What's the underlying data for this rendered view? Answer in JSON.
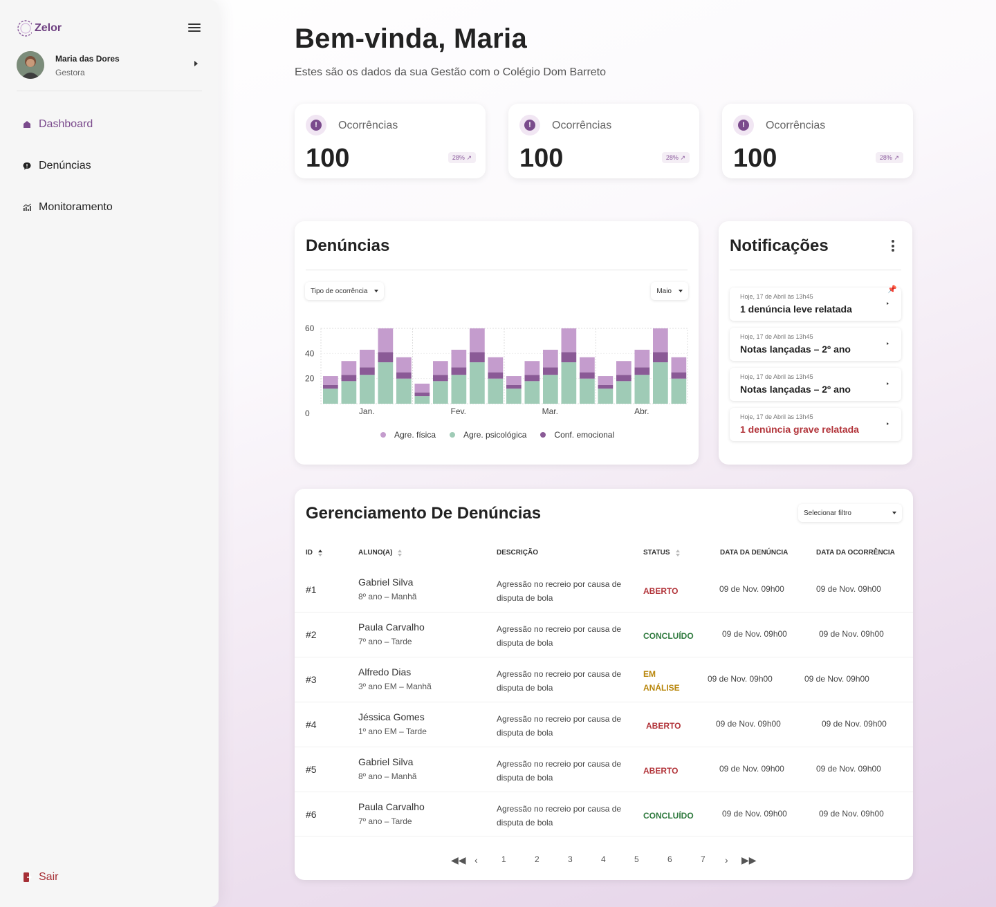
{
  "sidebar": {
    "brand": "Zelor",
    "user": {
      "name": "Maria das Dores",
      "role": "Gestora"
    },
    "nav": [
      {
        "label": "Dashboard",
        "active": true
      },
      {
        "label": "Denúncias",
        "active": false
      },
      {
        "label": "Monitoramento",
        "active": false
      }
    ],
    "logout": "Sair"
  },
  "header": {
    "title": "Bem-vinda, Maria",
    "subtitle": "Estes são os dados da sua Gestão com o Colégio Dom Barreto"
  },
  "stats": [
    {
      "label": "Ocorrências",
      "value": "100",
      "trend": "28%"
    },
    {
      "label": "Ocorrências",
      "value": "100",
      "trend": "28%"
    },
    {
      "label": "Ocorrências",
      "value": "100",
      "trend": "28%"
    }
  ],
  "chart_card": {
    "title": "Denúncias",
    "filter_type": "Tipo de ocorrência",
    "filter_month": "Maio"
  },
  "chart_data": {
    "type": "bar",
    "stacked": true,
    "groups": [
      "Jan.",
      "Fev.",
      "Mar.",
      "Abr."
    ],
    "bars_per_group": 5,
    "y_ticks": [
      0,
      20,
      40,
      60
    ],
    "ylim": [
      0,
      60
    ],
    "colors": {
      "psicologica": "#9fcbb6",
      "emocional": "#8a5a96",
      "fisica": "#c49ccd"
    },
    "series": [
      {
        "name": "Agre. psicológica",
        "values": [
          12,
          18,
          23,
          33,
          20,
          6,
          18,
          23,
          33,
          20,
          12,
          18,
          23,
          33,
          20,
          12,
          18,
          23,
          33,
          20
        ]
      },
      {
        "name": "Conf. emocional",
        "values": [
          3,
          5,
          6,
          8,
          5,
          3,
          5,
          6,
          8,
          5,
          3,
          5,
          6,
          8,
          5,
          3,
          5,
          6,
          8,
          5
        ]
      },
      {
        "name": "Agre. física",
        "values": [
          7,
          11,
          14,
          19,
          12,
          7,
          11,
          14,
          19,
          12,
          7,
          11,
          14,
          19,
          12,
          7,
          11,
          14,
          19,
          12
        ]
      }
    ],
    "legend": [
      "Agre. física",
      "Agre. psicológica",
      "Conf. emocional"
    ]
  },
  "notifications": {
    "title": "Notificações",
    "items": [
      {
        "time": "Hoje, 17 de Abril às 13h45",
        "text": "1 denúncia leve relatada",
        "alert": false,
        "pinned": true
      },
      {
        "time": "Hoje, 17 de Abril às 13h45",
        "text": "Notas lançadas – 2º ano",
        "alert": false,
        "pinned": false
      },
      {
        "time": "Hoje, 17 de Abril às 13h45",
        "text": "Notas lançadas – 2º ano",
        "alert": false,
        "pinned": false
      },
      {
        "time": "Hoje, 17 de Abril às 13h45",
        "text": "1 denúncia grave relatada",
        "alert": true,
        "pinned": false
      }
    ]
  },
  "table": {
    "title": "Gerenciamento De Denúncias",
    "filter": "Selecionar filtro",
    "columns": [
      "ID",
      "ALUNO(A)",
      "DESCRIÇÃO",
      "STATUS",
      "DATA DA DENÚNCIA",
      "DATA DA OCORRÊNCIA"
    ],
    "rows": [
      {
        "id": "#1",
        "name": "Gabriel Silva",
        "grade": "8º ano – Manhã",
        "desc": "Agressão no recreio por causa de disputa de bola",
        "status": "ABERTO",
        "status_kind": "aberto",
        "report_date": "09 de Nov. 09h00",
        "occ_date": "09 de Nov. 09h00"
      },
      {
        "id": "#2",
        "name": "Paula Carvalho",
        "grade": "7º ano – Tarde",
        "desc": "Agressão no recreio por causa de disputa de bola",
        "status": "CONCLUÍDO",
        "status_kind": "concluido",
        "report_date": "09 de Nov. 09h00",
        "occ_date": "09 de Nov. 09h00"
      },
      {
        "id": "#3",
        "name": "Alfredo Dias",
        "grade": "3º ano EM – Manhã",
        "desc": "Agressão no recreio por causa de disputa de bola",
        "status": "EM ANÁLISE",
        "status_kind": "analise",
        "report_date": "09 de Nov. 09h00",
        "occ_date": "09 de Nov. 09h00"
      },
      {
        "id": "#4",
        "name": "Jéssica Gomes",
        "grade": "1º ano EM – Tarde",
        "desc": "Agressão no recreio por causa de disputa de bola",
        "status": "ABERTO",
        "status_kind": "aberto",
        "report_date": "09 de Nov. 09h00",
        "occ_date": "09 de Nov. 09h00"
      },
      {
        "id": "#5",
        "name": "Gabriel Silva",
        "grade": "8º ano – Manhã",
        "desc": "Agressão no recreio por causa de disputa de bola",
        "status": "ABERTO",
        "status_kind": "aberto",
        "report_date": "09 de Nov. 09h00",
        "occ_date": "09 de Nov. 09h00"
      },
      {
        "id": "#6",
        "name": "Paula Carvalho",
        "grade": "7º ano – Tarde",
        "desc": "Agressão no recreio por causa de disputa de bola",
        "status": "CONCLUÍDO",
        "status_kind": "concluido",
        "report_date": "09 de Nov. 09h00",
        "occ_date": "09 de Nov. 09h00"
      }
    ],
    "pages": [
      "1",
      "2",
      "3",
      "4",
      "5",
      "6",
      "7"
    ]
  }
}
